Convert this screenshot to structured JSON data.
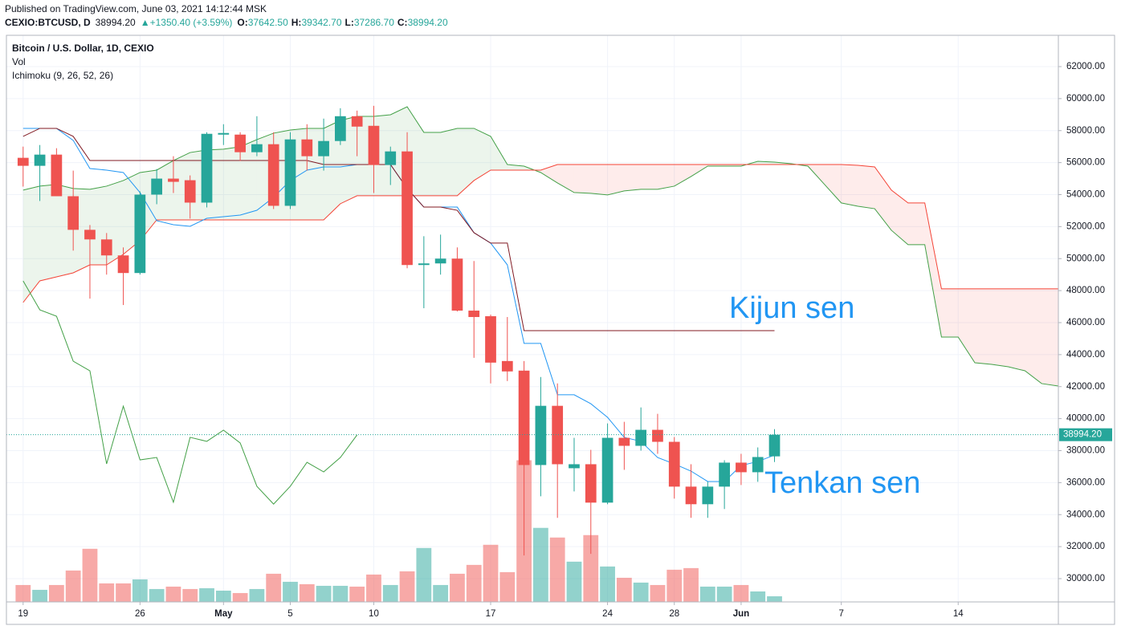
{
  "header": {
    "published": "Published on TradingView.com, June 03, 2021 14:12:44 MSK",
    "symbol": "CEXIO:BTCUSD, D",
    "price": "38994.20",
    "change": "▲+1350.40 (+3.59%)",
    "ohlc": [
      {
        "key": "O:",
        "value": "37642.50"
      },
      {
        "key": "H:",
        "value": "39342.70"
      },
      {
        "key": "L:",
        "value": "37286.70"
      },
      {
        "key": "C:",
        "value": "38994.20"
      }
    ]
  },
  "chart_data": {
    "type": "candlestick",
    "legend": [
      "Bitcoin / U.S. Dollar, 1D, CEXIO",
      "Vol",
      "Ichimoku (9, 26, 52, 26)"
    ],
    "annotations": [
      {
        "text": "Kijun sen"
      },
      {
        "text": "Tenkan sen"
      }
    ],
    "x": [
      "2021-04-19",
      "2021-04-20",
      "2021-04-21",
      "2021-04-22",
      "2021-04-23",
      "2021-04-24",
      "2021-04-25",
      "2021-04-26",
      "2021-04-27",
      "2021-04-28",
      "2021-04-29",
      "2021-04-30",
      "2021-05-01",
      "2021-05-02",
      "2021-05-03",
      "2021-05-04",
      "2021-05-05",
      "2021-05-06",
      "2021-05-07",
      "2021-05-08",
      "2021-05-09",
      "2021-05-10",
      "2021-05-11",
      "2021-05-12",
      "2021-05-13",
      "2021-05-14",
      "2021-05-15",
      "2021-05-16",
      "2021-05-17",
      "2021-05-18",
      "2021-05-19",
      "2021-05-20",
      "2021-05-21",
      "2021-05-22",
      "2021-05-23",
      "2021-05-24",
      "2021-05-25",
      "2021-05-26",
      "2021-05-27",
      "2021-05-28",
      "2021-05-29",
      "2021-05-30",
      "2021-05-31",
      "2021-06-01",
      "2021-06-02",
      "2021-06-03"
    ],
    "open": [
      56300,
      55800,
      56500,
      53900,
      51800,
      51200,
      50200,
      49100,
      54000,
      55000,
      54900,
      53500,
      57750,
      57750,
      56650,
      57150,
      53300,
      57450,
      56400,
      57350,
      58900,
      58300,
      55850,
      56700,
      49600,
      49700,
      50000,
      46750,
      46400,
      43600,
      43000,
      37100,
      40800,
      36900,
      37150,
      34750,
      38800,
      38300,
      39300,
      38550,
      35750,
      34650,
      35750,
      37250,
      36650,
      37642.5
    ],
    "high": [
      57000,
      57100,
      56900,
      55500,
      52100,
      51600,
      50700,
      54200,
      55600,
      56400,
      55200,
      57900,
      58400,
      57900,
      58900,
      57900,
      57900,
      58400,
      58750,
      59400,
      59250,
      59550,
      57000,
      57900,
      51400,
      51500,
      50700,
      49850,
      46500,
      46350,
      43600,
      42600,
      42200,
      38800,
      38050,
      39700,
      39800,
      40700,
      40300,
      38850,
      37150,
      36050,
      37400,
      37800,
      38200,
      39342.7
    ],
    "low": [
      54500,
      53600,
      53900,
      50500,
      47500,
      49000,
      47100,
      49000,
      53400,
      54100,
      52500,
      53200,
      57100,
      56100,
      56400,
      53100,
      53100,
      55500,
      55500,
      57100,
      56400,
      54100,
      54600,
      49400,
      46900,
      49000,
      46700,
      43800,
      42200,
      42350,
      31450,
      35150,
      33800,
      35450,
      31550,
      34650,
      36800,
      38000,
      37800,
      35000,
      33800,
      33800,
      34350,
      35850,
      36050,
      37286.7
    ],
    "close": [
      55800,
      56500,
      53900,
      51800,
      51200,
      50200,
      49100,
      54000,
      55000,
      54800,
      53500,
      57800,
      57850,
      56650,
      57150,
      53300,
      57450,
      56400,
      57350,
      58900,
      58250,
      55850,
      56700,
      49600,
      49700,
      50000,
      46750,
      46350,
      43500,
      42950,
      37100,
      40800,
      37150,
      37150,
      34750,
      38800,
      38300,
      39300,
      38550,
      35750,
      34650,
      35750,
      37250,
      36650,
      37600,
      38994.2
    ],
    "volume": [
      21,
      15,
      21,
      39,
      66,
      23,
      23,
      28,
      16,
      19,
      16,
      17,
      14,
      11,
      16,
      35,
      25,
      22,
      20,
      20,
      19,
      34,
      21,
      38,
      67,
      21,
      35,
      46,
      71,
      37,
      176,
      92,
      80,
      50,
      83,
      44,
      30,
      24,
      21,
      40,
      42,
      19,
      19,
      21,
      13,
      7
    ],
    "up_color": "#26a69a",
    "down_color": "#ef5350",
    "lines": [
      {
        "name": "Tenkan",
        "color": "#2196f3",
        "values": [
          58140,
          58140,
          58140,
          57390,
          55630,
          55530,
          55380,
          54130,
          52370,
          52120,
          52020,
          52520,
          52620,
          52720,
          53020,
          53830,
          54880,
          55530,
          55730,
          55730,
          55880,
          55880,
          55880,
          54380,
          53220,
          53220,
          53220,
          51620,
          50970,
          49610,
          44700,
          44700,
          41490,
          41490,
          40930,
          40080,
          38830,
          38580,
          37570,
          37170,
          36720,
          36070,
          36070,
          37070,
          37320,
          37720
        ]
      },
      {
        "name": "Kijun",
        "color": "#801922",
        "values": [
          57640,
          58140,
          58140,
          57640,
          56130,
          56130,
          56130,
          56130,
          56130,
          56130,
          56130,
          56130,
          56130,
          56130,
          56130,
          56130,
          56130,
          56130,
          55880,
          55880,
          55880,
          55880,
          55880,
          54380,
          53220,
          53220,
          53020,
          51620,
          50970,
          50970,
          45500,
          45500,
          45500,
          45500,
          45500,
          45500,
          45500,
          45500,
          45500,
          45500,
          45500,
          45500,
          45500,
          45500,
          45500,
          45500
        ]
      },
      {
        "name": "Chikou",
        "color": "#43a047",
        "values": [
          48610,
          46800,
          46400,
          43590,
          42990,
          37170,
          40780,
          37420,
          37570,
          34770,
          38830,
          38580,
          39280,
          38480,
          35770,
          34660,
          35770,
          37270,
          36670,
          37570,
          38980,
          null,
          null,
          null,
          null,
          null,
          null,
          null,
          null,
          null,
          null,
          null,
          null,
          null,
          null,
          null,
          null,
          null,
          null,
          null,
          null,
          null,
          null,
          null,
          null,
          null
        ]
      }
    ],
    "cloud": {
      "x": [
        "2021-04-19",
        "2021-04-20",
        "2021-04-21",
        "2021-04-22",
        "2021-04-23",
        "2021-04-24",
        "2021-04-25",
        "2021-04-26",
        "2021-04-27",
        "2021-04-28",
        "2021-04-29",
        "2021-04-30",
        "2021-05-01",
        "2021-05-02",
        "2021-05-03",
        "2021-05-04",
        "2021-05-05",
        "2021-05-06",
        "2021-05-07",
        "2021-05-08",
        "2021-05-09",
        "2021-05-10",
        "2021-05-11",
        "2021-05-12",
        "2021-05-13",
        "2021-05-14",
        "2021-05-15",
        "2021-05-16",
        "2021-05-17",
        "2021-05-18",
        "2021-05-19",
        "2021-05-20",
        "2021-05-21",
        "2021-05-22",
        "2021-05-23",
        "2021-05-24",
        "2021-05-25",
        "2021-05-26",
        "2021-05-27",
        "2021-05-28",
        "2021-05-29",
        "2021-05-30",
        "2021-05-31",
        "2021-06-01",
        "2021-06-02",
        "2021-06-03",
        "2021-06-04",
        "2021-06-05",
        "2021-06-06",
        "2021-06-07",
        "2021-06-08",
        "2021-06-09",
        "2021-06-10",
        "2021-06-11",
        "2021-06-12",
        "2021-06-13",
        "2021-06-14",
        "2021-06-15",
        "2021-06-16",
        "2021-06-17",
        "2021-06-18",
        "2021-06-19",
        "2021-06-20"
      ],
      "series": [
        {
          "name": "Senkou A",
          "color": "#43a047",
          "values": [
            54280,
            54530,
            54630,
            54380,
            54330,
            54530,
            54880,
            55380,
            55530,
            56130,
            56630,
            56790,
            56840,
            56990,
            57440,
            57840,
            58040,
            58140,
            58140,
            58640,
            58890,
            58890,
            58990,
            59490,
            57890,
            57890,
            58140,
            58140,
            57640,
            55880,
            55780,
            55380,
            54730,
            54130,
            54080,
            53980,
            54230,
            54330,
            54330,
            54530,
            55130,
            55780,
            55780,
            55780,
            56080,
            56030,
            55930,
            55780,
            54630,
            53480,
            53270,
            53120,
            51770,
            50870,
            50870,
            45100,
            45100,
            43490,
            43390,
            43240,
            42990,
            42190,
            42040
          ]
        },
        {
          "name": "Senkou B",
          "color": "#f44336",
          "values": [
            47260,
            48610,
            48860,
            49110,
            49610,
            49610,
            50270,
            51120,
            52420,
            52420,
            52420,
            52420,
            52420,
            52420,
            52420,
            52420,
            52420,
            52420,
            52420,
            53430,
            53930,
            53930,
            53930,
            53930,
            53930,
            53930,
            53930,
            54880,
            55530,
            55530,
            55530,
            55530,
            55880,
            55880,
            55880,
            55880,
            55880,
            55880,
            55880,
            55880,
            55880,
            55880,
            55880,
            55880,
            55880,
            55880,
            55880,
            55880,
            55880,
            55880,
            55830,
            55730,
            54280,
            53480,
            53480,
            48110,
            48110,
            48110,
            48110,
            48110,
            48110,
            48110,
            48110
          ]
        }
      ],
      "up_fill": "rgba(67,160,71,0.1)",
      "down_fill": "rgba(244,67,54,0.1)"
    },
    "last_price": {
      "value": 38994.2,
      "label": "38994.20"
    },
    "xlim": [
      "2021-04-18",
      "2021-06-20"
    ],
    "xticks": [
      {
        "value": "2021-04-19",
        "label": "19"
      },
      {
        "value": "2021-04-26",
        "label": "26"
      },
      {
        "value": "2021-05-01",
        "label": "May"
      },
      {
        "value": "2021-05-05",
        "label": "5"
      },
      {
        "value": "2021-05-10",
        "label": "10"
      },
      {
        "value": "2021-05-17",
        "label": "17"
      },
      {
        "value": "2021-05-24",
        "label": "24"
      },
      {
        "value": "2021-05-28",
        "label": "28"
      },
      {
        "value": "2021-06-01",
        "label": "Jun"
      },
      {
        "value": "2021-06-07",
        "label": "7"
      },
      {
        "value": "2021-06-14",
        "label": "14"
      }
    ],
    "ylim": [
      28545,
      63956
    ],
    "yticks": [
      {
        "value": 30000,
        "label": "30000.00"
      },
      {
        "value": 32000,
        "label": "32000.00"
      },
      {
        "value": 34000,
        "label": "34000.00"
      },
      {
        "value": 36000,
        "label": "36000.00"
      },
      {
        "value": 38000,
        "label": "38000.00"
      },
      {
        "value": 40000,
        "label": "40000.00"
      },
      {
        "value": 42000,
        "label": "42000.00"
      },
      {
        "value": 44000,
        "label": "44000.00"
      },
      {
        "value": 46000,
        "label": "46000.00"
      },
      {
        "value": 48000,
        "label": "48000.00"
      },
      {
        "value": 50000,
        "label": "50000.00"
      },
      {
        "value": 52000,
        "label": "52000.00"
      },
      {
        "value": 54000,
        "label": "54000.00"
      },
      {
        "value": 56000,
        "label": "56000.00"
      },
      {
        "value": 58000,
        "label": "58000.00"
      },
      {
        "value": 60000,
        "label": "60000.00"
      },
      {
        "value": 62000,
        "label": "62000.00"
      }
    ],
    "grid": true
  }
}
